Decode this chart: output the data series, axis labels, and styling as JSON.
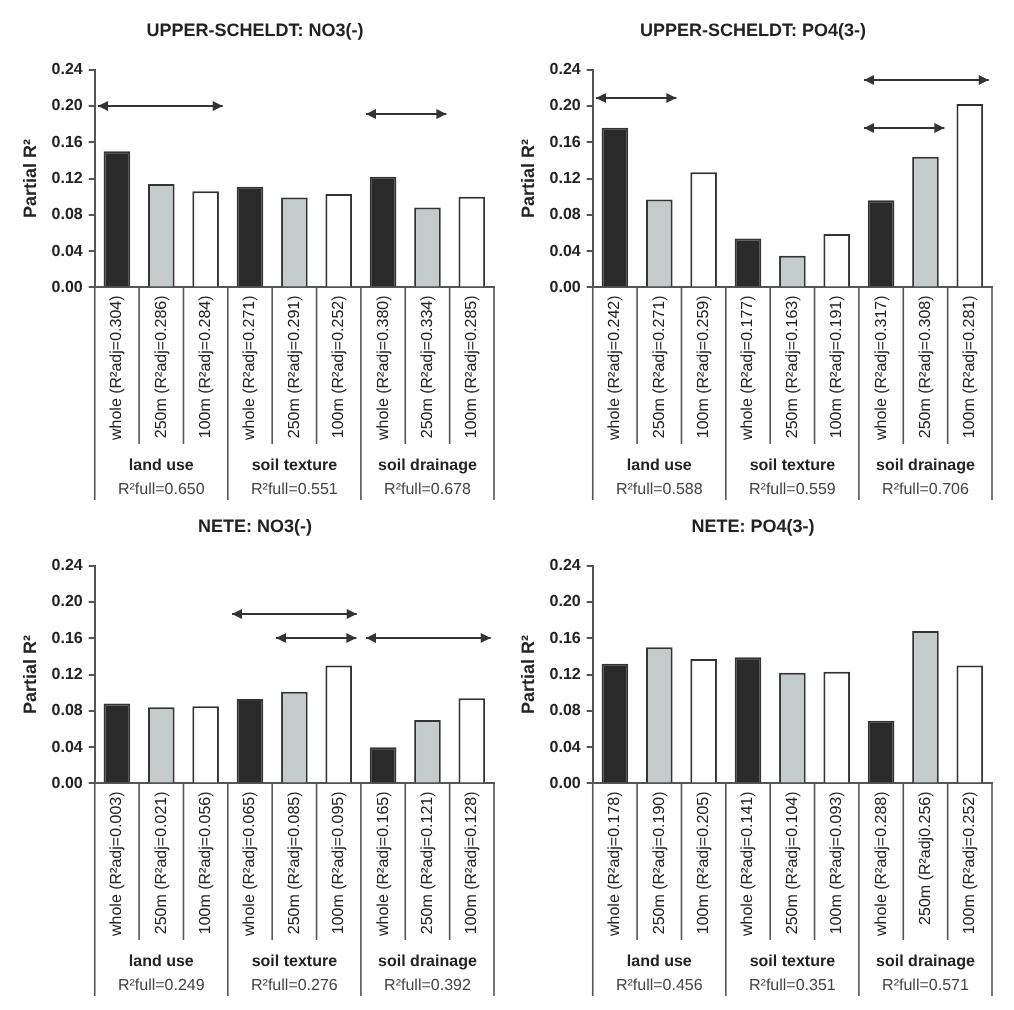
{
  "chart_data": [
    {
      "type": "bar",
      "title": "UPPER-SCHELDT: NO3(-)",
      "ylabel": "Partial R²",
      "categories": [
        "whole (R²adj=0.304)",
        "250m (R²adj=0.286)",
        "100m (R²adj=0.284)",
        "whole (R²adj=0.271)",
        "250m (R²adj=0.291)",
        "100m (R²adj=0.252)",
        "whole (R²adj=0.380)",
        "250m (R²adj=0.334)",
        "100m (R²adj=0.285)"
      ],
      "values": [
        0.15,
        0.114,
        0.106,
        0.111,
        0.099,
        0.103,
        0.122,
        0.088,
        0.1
      ],
      "colors": [
        "#2a2a2a",
        "#c3cbcb",
        "#ffffff",
        "#2a2a2a",
        "#c3cbcb",
        "#ffffff",
        "#2a2a2a",
        "#c3cbcb",
        "#ffffff"
      ],
      "ylim": [
        0,
        0.24
      ],
      "yticks": [
        {
          "value": 0,
          "label": "0.00"
        },
        {
          "value": 0.04,
          "label": "0.04"
        },
        {
          "value": 0.08,
          "label": "0.08"
        },
        {
          "value": 0.12,
          "label": "0.12"
        },
        {
          "value": 0.16,
          "label": "0.16"
        },
        {
          "value": 0.2,
          "label": "0.20"
        },
        {
          "value": 0.24,
          "label": "0.24"
        }
      ],
      "annotations": [
        "land use",
        "soil texture",
        "soil drainage",
        "R²full=0.650",
        "R²full=0.551",
        "R²full=0.678"
      ],
      "grid": false,
      "legend": false
    },
    {
      "type": "bar",
      "title": "UPPER-SCHELDT: PO4(3-)",
      "ylabel": "Partial R²",
      "categories": [
        "whole (R²adj=0.242)",
        "250m (R²adj=0.271)",
        "100m (R²adj=0.259)",
        "whole (R²adj=0.177)",
        "250m (R²adj=0.163)",
        "100m (R²adj=0.191)",
        "whole (R²adj=0.317)",
        "250m (R²adj=0.308)",
        "100m (R²adj=0.281)"
      ],
      "values": [
        0.176,
        0.097,
        0.127,
        0.054,
        0.035,
        0.059,
        0.096,
        0.144,
        0.202
      ],
      "colors": [
        "#2a2a2a",
        "#c3cbcb",
        "#ffffff",
        "#2a2a2a",
        "#c3cbcb",
        "#ffffff",
        "#2a2a2a",
        "#c3cbcb",
        "#ffffff"
      ],
      "ylim": [
        0,
        0.24
      ],
      "yticks": [
        {
          "value": 0,
          "label": "0.00"
        },
        {
          "value": 0.04,
          "label": "0.04"
        },
        {
          "value": 0.08,
          "label": "0.08"
        },
        {
          "value": 0.12,
          "label": "0.12"
        },
        {
          "value": 0.16,
          "label": "0.16"
        },
        {
          "value": 0.2,
          "label": "0.20"
        },
        {
          "value": 0.24,
          "label": "0.24"
        }
      ],
      "annotations": [
        "land use",
        "soil texture",
        "soil drainage",
        "R²full=0.588",
        "R²full=0.559",
        "R²full=0.706"
      ],
      "grid": false,
      "legend": false
    },
    {
      "type": "bar",
      "title": "NETE: NO3(-)",
      "ylabel": "Partial R²",
      "categories": [
        "whole (R²adj=0.003)",
        "250m (R²adj=0.021)",
        "100m (R²adj=0.056)",
        "whole (R²adj=0.065)",
        "250m (R²adj=0.085)",
        "100m (R²adj=0.095)",
        "whole (R²adj=0.165)",
        "250m (R²adj=0.121)",
        "100m (R²adj=0.128)"
      ],
      "values": [
        0.088,
        0.084,
        0.085,
        0.093,
        0.101,
        0.13,
        0.04,
        0.07,
        0.094
      ],
      "colors": [
        "#2a2a2a",
        "#c3cbcb",
        "#ffffff",
        "#2a2a2a",
        "#c3cbcb",
        "#ffffff",
        "#2a2a2a",
        "#c3cbcb",
        "#ffffff"
      ],
      "ylim": [
        0,
        0.24
      ],
      "yticks": [
        {
          "value": 0,
          "label": "0.00"
        },
        {
          "value": 0.04,
          "label": "0.04"
        },
        {
          "value": 0.08,
          "label": "0.08"
        },
        {
          "value": 0.12,
          "label": "0.12"
        },
        {
          "value": 0.16,
          "label": "0.16"
        },
        {
          "value": 0.2,
          "label": "0.20"
        },
        {
          "value": 0.24,
          "label": "0.24"
        }
      ],
      "annotations": [
        "land use",
        "soil texture",
        "soil drainage",
        "R²full=0.249",
        "R²full=0.276",
        "R²full=0.392"
      ],
      "grid": false,
      "legend": false
    },
    {
      "type": "bar",
      "title": "NETE: PO4(3-)",
      "ylabel": "Partial R²",
      "categories": [
        "whole (R²adj=0.178)",
        "250m (R²adj=0.190)",
        "100m (R²adj=0.205)",
        "whole (R²adj=0.141)",
        "250m (R²adj=0.104)",
        "100m (R²adj=0.093)",
        "whole (R²adj=0.288)",
        "250m (R²adj0.256)",
        "100m (R²adj=0.252)"
      ],
      "values": [
        0.132,
        0.15,
        0.137,
        0.139,
        0.122,
        0.123,
        0.069,
        0.168,
        0.13
      ],
      "colors": [
        "#2a2a2a",
        "#c3cbcb",
        "#ffffff",
        "#2a2a2a",
        "#c3cbcb",
        "#ffffff",
        "#2a2a2a",
        "#c3cbcb",
        "#ffffff"
      ],
      "ylim": [
        0,
        0.24
      ],
      "yticks": [
        {
          "value": 0,
          "label": "0.00"
        },
        {
          "value": 0.04,
          "label": "0.04"
        },
        {
          "value": 0.08,
          "label": "0.08"
        },
        {
          "value": 0.12,
          "label": "0.12"
        },
        {
          "value": 0.16,
          "label": "0.16"
        },
        {
          "value": 0.2,
          "label": "0.20"
        },
        {
          "value": 0.24,
          "label": "0.24"
        }
      ],
      "annotations": [
        "land use",
        "soil texture",
        "soil drainage",
        "R²full=0.456",
        "R²full=0.351",
        "R²full=0.571"
      ],
      "grid": false,
      "legend": false
    }
  ]
}
